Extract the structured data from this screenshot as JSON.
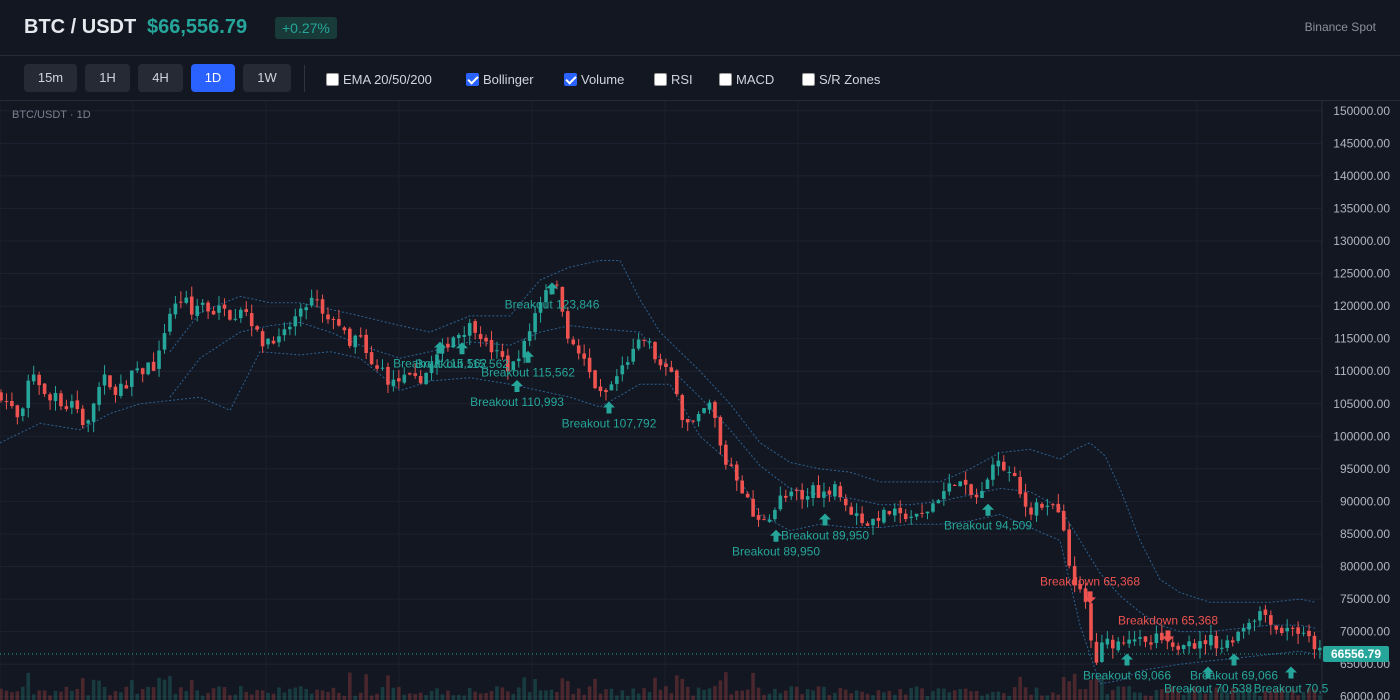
{
  "header": {
    "symbol": "BTC / USDT",
    "price": "$66,556.79",
    "change": "+0.27%",
    "exchange": "Binance Spot"
  },
  "toolbar": {
    "timeframes": [
      {
        "label": "15m",
        "active": false
      },
      {
        "label": "1H",
        "active": false
      },
      {
        "label": "4H",
        "active": false
      },
      {
        "label": "1D",
        "active": true
      },
      {
        "label": "1W",
        "active": false
      }
    ],
    "indicators": [
      {
        "label": "EMA 20/50/200",
        "checked": false
      },
      {
        "label": "Bollinger",
        "checked": true
      },
      {
        "label": "Volume",
        "checked": true
      },
      {
        "label": "RSI",
        "checked": false
      },
      {
        "label": "MACD",
        "checked": false
      },
      {
        "label": "S/R Zones",
        "checked": false
      }
    ]
  },
  "chart_title": "BTC/USDT · 1D",
  "colors": {
    "up": "#26a69a",
    "down": "#ef5350",
    "bollinger": "#2f6aa0",
    "background": "#131722"
  },
  "chart_data": {
    "type": "candlestick",
    "y_axis_ticks": [
      "150000.00",
      "145000.00",
      "140000.00",
      "135000.00",
      "130000.00",
      "125000.00",
      "120000.00",
      "115000.00",
      "110000.00",
      "105000.00",
      "100000.00",
      "95000.00",
      "90000.00",
      "85000.00",
      "80000.00",
      "75000.00",
      "70000.00",
      "65000.00",
      "60000.00"
    ],
    "ylim": [
      59500,
      151500
    ],
    "last_price": 66556.79,
    "last_price_label": "66556.79",
    "close_path": [
      [
        0,
        106500
      ],
      [
        8,
        105000
      ],
      [
        14,
        104000
      ],
      [
        20,
        101500
      ],
      [
        26,
        106000
      ],
      [
        30,
        110000
      ],
      [
        36,
        109500
      ],
      [
        42,
        107000
      ],
      [
        48,
        105000
      ],
      [
        56,
        107000
      ],
      [
        64,
        104000
      ],
      [
        72,
        105500
      ],
      [
        80,
        103500
      ],
      [
        86,
        100500
      ],
      [
        92,
        104500
      ],
      [
        98,
        107000
      ],
      [
        104,
        109000
      ],
      [
        112,
        106500
      ],
      [
        120,
        108000
      ],
      [
        126,
        106500
      ],
      [
        132,
        110000
      ],
      [
        140,
        109500
      ],
      [
        148,
        111000
      ],
      [
        156,
        110500
      ],
      [
        164,
        116000
      ],
      [
        170,
        119000
      ],
      [
        178,
        120500
      ],
      [
        184,
        121500
      ],
      [
        192,
        118500
      ],
      [
        200,
        121000
      ],
      [
        208,
        119500
      ],
      [
        216,
        119000
      ],
      [
        224,
        120500
      ],
      [
        232,
        118000
      ],
      [
        240,
        120000
      ],
      [
        248,
        119000
      ],
      [
        256,
        116000
      ],
      [
        264,
        114000
      ],
      [
        270,
        115500
      ],
      [
        278,
        114500
      ],
      [
        286,
        116000
      ],
      [
        294,
        118000
      ],
      [
        302,
        119000
      ],
      [
        310,
        121000
      ],
      [
        318,
        120500
      ],
      [
        326,
        117000
      ],
      [
        334,
        118500
      ],
      [
        342,
        116500
      ],
      [
        350,
        113500
      ],
      [
        358,
        116000
      ],
      [
        366,
        112500
      ],
      [
        374,
        110000
      ],
      [
        382,
        110500
      ],
      [
        390,
        108000
      ],
      [
        398,
        108500
      ],
      [
        406,
        109000
      ],
      [
        414,
        108500
      ],
      [
        422,
        109000
      ],
      [
        430,
        110500
      ],
      [
        438,
        112500
      ],
      [
        446,
        114000
      ],
      [
        454,
        115500
      ],
      [
        462,
        116000
      ],
      [
        470,
        117000
      ],
      [
        478,
        116500
      ],
      [
        486,
        114000
      ],
      [
        494,
        113000
      ],
      [
        502,
        112000
      ],
      [
        510,
        110000
      ],
      [
        518,
        112500
      ],
      [
        526,
        114500
      ],
      [
        534,
        118500
      ],
      [
        542,
        121500
      ],
      [
        550,
        124000
      ],
      [
        556,
        123000
      ],
      [
        562,
        120000
      ],
      [
        570,
        114000
      ],
      [
        578,
        113000
      ],
      [
        586,
        111000
      ],
      [
        594,
        108000
      ],
      [
        602,
        106000
      ],
      [
        610,
        107500
      ],
      [
        618,
        109500
      ],
      [
        626,
        111500
      ],
      [
        634,
        113000
      ],
      [
        642,
        115000
      ],
      [
        650,
        114000
      ],
      [
        658,
        111000
      ],
      [
        666,
        110000
      ],
      [
        674,
        109500
      ],
      [
        682,
        103000
      ],
      [
        690,
        101500
      ],
      [
        698,
        102500
      ],
      [
        706,
        104500
      ],
      [
        712,
        105000
      ],
      [
        718,
        100000
      ],
      [
        724,
        96000
      ],
      [
        732,
        95500
      ],
      [
        740,
        92500
      ],
      [
        748,
        90000
      ],
      [
        756,
        86500
      ],
      [
        764,
        87500
      ],
      [
        772,
        88000
      ],
      [
        780,
        90500
      ],
      [
        788,
        90500
      ],
      [
        796,
        91500
      ],
      [
        804,
        89500
      ],
      [
        812,
        92500
      ],
      [
        820,
        91000
      ],
      [
        828,
        91500
      ],
      [
        836,
        93000
      ],
      [
        844,
        89000
      ],
      [
        852,
        88500
      ],
      [
        860,
        87500
      ],
      [
        868,
        86500
      ],
      [
        876,
        87500
      ],
      [
        884,
        88000
      ],
      [
        892,
        88500
      ],
      [
        900,
        87500
      ],
      [
        908,
        88000
      ],
      [
        916,
        87500
      ],
      [
        924,
        88000
      ],
      [
        932,
        89500
      ],
      [
        940,
        91000
      ],
      [
        948,
        92000
      ],
      [
        956,
        93500
      ],
      [
        962,
        92500
      ],
      [
        970,
        91000
      ],
      [
        978,
        90500
      ],
      [
        986,
        92000
      ],
      [
        992,
        96500
      ],
      [
        1000,
        95500
      ],
      [
        1008,
        94500
      ],
      [
        1016,
        93000
      ],
      [
        1022,
        90000
      ],
      [
        1030,
        88500
      ],
      [
        1038,
        90000
      ],
      [
        1046,
        88500
      ],
      [
        1054,
        89500
      ],
      [
        1062,
        86500
      ],
      [
        1070,
        79500
      ],
      [
        1078,
        76500
      ],
      [
        1086,
        74000
      ],
      [
        1090,
        70000
      ],
      [
        1094,
        64000
      ],
      [
        1100,
        67500
      ],
      [
        1108,
        68500
      ],
      [
        1116,
        68000
      ],
      [
        1124,
        69000
      ],
      [
        1132,
        69500
      ],
      [
        1140,
        68500
      ],
      [
        1148,
        67500
      ],
      [
        1156,
        69000
      ],
      [
        1164,
        68500
      ],
      [
        1172,
        67000
      ],
      [
        1180,
        68000
      ],
      [
        1188,
        69500
      ],
      [
        1196,
        67500
      ],
      [
        1204,
        68500
      ],
      [
        1212,
        69000
      ],
      [
        1220,
        67500
      ],
      [
        1228,
        68500
      ],
      [
        1236,
        69500
      ],
      [
        1244,
        71000
      ],
      [
        1252,
        72000
      ],
      [
        1260,
        73000
      ],
      [
        1268,
        72500
      ],
      [
        1276,
        70500
      ],
      [
        1284,
        70000
      ],
      [
        1292,
        71000
      ],
      [
        1300,
        69500
      ],
      [
        1308,
        69000
      ],
      [
        1316,
        67500
      ],
      [
        1322,
        66557
      ]
    ],
    "bollinger_upper": [
      [
        170,
        113000
      ],
      [
        200,
        119000
      ],
      [
        240,
        121500
      ],
      [
        270,
        120500
      ],
      [
        300,
        120500
      ],
      [
        330,
        119500
      ],
      [
        360,
        118500
      ],
      [
        400,
        117000
      ],
      [
        430,
        116000
      ],
      [
        470,
        118500
      ],
      [
        510,
        118500
      ],
      [
        540,
        124000
      ],
      [
        570,
        126000
      ],
      [
        600,
        127000
      ],
      [
        620,
        127000
      ],
      [
        640,
        121000
      ],
      [
        660,
        116000
      ],
      [
        680,
        113000
      ],
      [
        700,
        110000
      ],
      [
        730,
        105000
      ],
      [
        760,
        99000
      ],
      [
        790,
        96000
      ],
      [
        820,
        95000
      ],
      [
        850,
        94500
      ],
      [
        880,
        93000
      ],
      [
        910,
        93000
      ],
      [
        940,
        93000
      ],
      [
        970,
        95000
      ],
      [
        1000,
        97500
      ],
      [
        1030,
        98000
      ],
      [
        1060,
        96500
      ],
      [
        1075,
        98000
      ],
      [
        1090,
        99000
      ],
      [
        1105,
        97000
      ],
      [
        1120,
        92000
      ],
      [
        1140,
        84000
      ],
      [
        1160,
        78000
      ],
      [
        1180,
        76000
      ],
      [
        1210,
        74500
      ],
      [
        1240,
        74500
      ],
      [
        1270,
        74500
      ],
      [
        1300,
        75000
      ],
      [
        1316,
        74500
      ]
    ],
    "bollinger_middle": [
      [
        170,
        106000
      ],
      [
        200,
        112000
      ],
      [
        240,
        116000
      ],
      [
        270,
        117000
      ],
      [
        300,
        117500
      ],
      [
        330,
        116000
      ],
      [
        360,
        114000
      ],
      [
        400,
        112000
      ],
      [
        430,
        113000
      ],
      [
        470,
        114500
      ],
      [
        510,
        114000
      ],
      [
        540,
        116000
      ],
      [
        570,
        117000
      ],
      [
        600,
        116500
      ],
      [
        640,
        116000
      ],
      [
        660,
        112000
      ],
      [
        700,
        106000
      ],
      [
        730,
        101000
      ],
      [
        760,
        95500
      ],
      [
        790,
        92000
      ],
      [
        820,
        91000
      ],
      [
        850,
        90500
      ],
      [
        880,
        89500
      ],
      [
        910,
        89500
      ],
      [
        940,
        90000
      ],
      [
        970,
        91000
      ],
      [
        1000,
        92000
      ],
      [
        1030,
        91500
      ],
      [
        1060,
        89000
      ],
      [
        1080,
        84000
      ],
      [
        1100,
        79000
      ],
      [
        1120,
        75500
      ],
      [
        1140,
        73000
      ],
      [
        1160,
        71000
      ],
      [
        1180,
        70000
      ],
      [
        1210,
        70000
      ],
      [
        1240,
        70500
      ],
      [
        1270,
        71000
      ],
      [
        1300,
        71000
      ],
      [
        1316,
        70500
      ]
    ],
    "bollinger_lower": [
      [
        0,
        99000
      ],
      [
        40,
        102000
      ],
      [
        80,
        101000
      ],
      [
        110,
        103500
      ],
      [
        140,
        105000
      ],
      [
        170,
        105500
      ],
      [
        200,
        106000
      ],
      [
        230,
        104000
      ],
      [
        260,
        113000
      ],
      [
        300,
        112500
      ],
      [
        330,
        113000
      ],
      [
        360,
        112000
      ],
      [
        400,
        107000
      ],
      [
        430,
        108500
      ],
      [
        470,
        109000
      ],
      [
        510,
        108000
      ],
      [
        540,
        107000
      ],
      [
        570,
        106000
      ],
      [
        600,
        104500
      ],
      [
        640,
        108000
      ],
      [
        670,
        108000
      ],
      [
        700,
        100000
      ],
      [
        730,
        96000
      ],
      [
        760,
        88000
      ],
      [
        790,
        85500
      ],
      [
        820,
        86500
      ],
      [
        850,
        86000
      ],
      [
        880,
        86000
      ],
      [
        910,
        86500
      ],
      [
        940,
        86500
      ],
      [
        970,
        87000
      ],
      [
        1000,
        88000
      ],
      [
        1030,
        86000
      ],
      [
        1060,
        84000
      ],
      [
        1080,
        71000
      ],
      [
        1100,
        62000
      ],
      [
        1120,
        62500
      ],
      [
        1140,
        64000
      ],
      [
        1160,
        64500
      ],
      [
        1180,
        65000
      ],
      [
        1210,
        65500
      ],
      [
        1240,
        66000
      ],
      [
        1270,
        66500
      ],
      [
        1300,
        67000
      ],
      [
        1316,
        66500
      ]
    ],
    "signals": [
      {
        "text": "Breakout 115,562",
        "x": 440,
        "price": 112400,
        "type": "up"
      },
      {
        "text": "Breakout 115,562",
        "x": 462,
        "price": 112300,
        "type": "up"
      },
      {
        "text": "Breakout 115,562",
        "x": 528,
        "price": 111000,
        "type": "up"
      },
      {
        "text": "Breakout 110,993",
        "x": 517,
        "price": 106500,
        "type": "up"
      },
      {
        "text": "Breakout 123,846",
        "x": 552,
        "price": 121500,
        "type": "up"
      },
      {
        "text": "Breakout 107,792",
        "x": 609,
        "price": 103200,
        "type": "up"
      },
      {
        "text": "Breakout 89,950",
        "x": 776,
        "price": 83500,
        "type": "up"
      },
      {
        "text": "Breakout 89,950",
        "x": 825,
        "price": 86000,
        "type": "up"
      },
      {
        "text": "Breakout 94,509",
        "x": 988,
        "price": 87500,
        "type": "up"
      },
      {
        "text": "Breakdown 65,368",
        "x": 1090,
        "price": 76500,
        "type": "down"
      },
      {
        "text": "Breakdown 65,368",
        "x": 1168,
        "price": 70500,
        "type": "down"
      },
      {
        "text": "Breakout 69,066",
        "x": 1127,
        "price": 64500,
        "type": "up"
      },
      {
        "text": "Breakout 70,538",
        "x": 1208,
        "price": 62500,
        "type": "up"
      },
      {
        "text": "Breakout 69,066",
        "x": 1234,
        "price": 64500,
        "type": "up"
      },
      {
        "text": "Breakout 70,5",
        "x": 1291,
        "price": 62500,
        "type": "up"
      }
    ]
  }
}
